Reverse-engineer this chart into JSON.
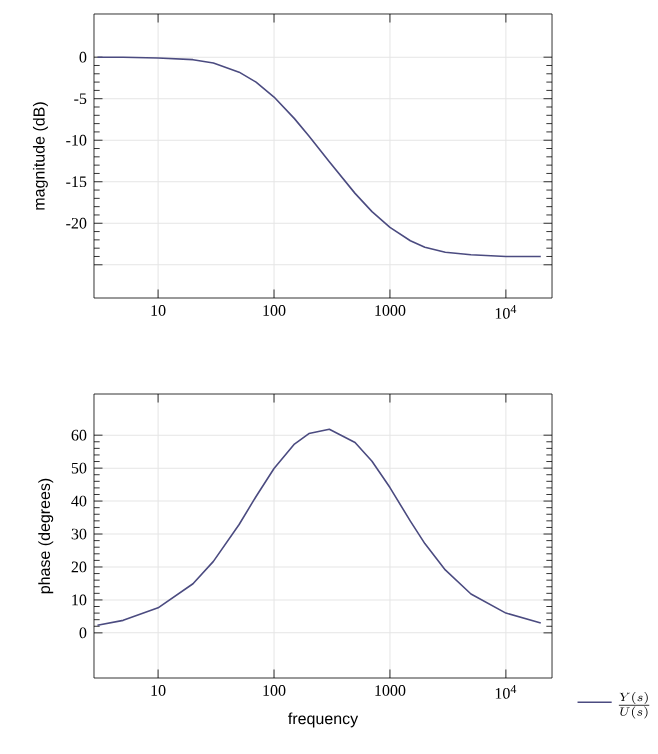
{
  "chart_data": [
    {
      "type": "line",
      "ylabel": "magnitude (dB)",
      "log": "x",
      "grid": true,
      "x": [
        3,
        5,
        10,
        20,
        30,
        50,
        70,
        100,
        150,
        200,
        300,
        500,
        700,
        1000,
        1500,
        2000,
        3000,
        5000,
        10000,
        20000
      ],
      "series": [
        {
          "color": "#4b4b80",
          "values": [
            0.0,
            0.0,
            -0.1,
            -0.3,
            -0.7,
            -1.8,
            -3.0,
            -4.8,
            -7.4,
            -9.5,
            -12.6,
            -16.4,
            -18.6,
            -20.5,
            -22.1,
            -22.9,
            -23.5,
            -23.8,
            -24.0,
            -24.0
          ]
        }
      ],
      "xlim": [
        2.8,
        25000
      ],
      "ylim": [
        -29,
        5.2
      ],
      "xticks": [
        10,
        100,
        1000,
        {
          "value": 10000,
          "label": "10$^{4}$"
        }
      ],
      "yticks": [
        0,
        -5,
        -10,
        -15,
        -20,
        {
          "value": -25,
          "label": null
        }
      ]
    },
    {
      "type": "line",
      "xlabel": "frequency",
      "ylabel": "phase (degrees)",
      "log": "x",
      "grid": true,
      "legend": "bottom right",
      "x": [
        3,
        5,
        10,
        20,
        30,
        50,
        70,
        100,
        150,
        200,
        300,
        500,
        700,
        1000,
        1500,
        2000,
        3000,
        5000,
        10000,
        20000
      ],
      "series": [
        {
          "name": "\\frac{Y(s)}{U(s)}",
          "color": "#4b4b80",
          "values": [
            2.3,
            3.8,
            7.6,
            14.9,
            21.7,
            32.9,
            41.4,
            49.9,
            57.3,
            60.5,
            61.8,
            57.8,
            52.1,
            44.1,
            33.9,
            27.1,
            19.1,
            11.8,
            6.0,
            3.0
          ]
        }
      ],
      "xlim": [
        2.8,
        25000
      ],
      "ylim": [
        -13.7,
        72.5
      ],
      "xticks": [
        10,
        100,
        1000,
        {
          "value": 10000,
          "label": "10$^{4}$"
        }
      ],
      "yticks": [
        0,
        10,
        20,
        30,
        40,
        50,
        60
      ]
    }
  ]
}
